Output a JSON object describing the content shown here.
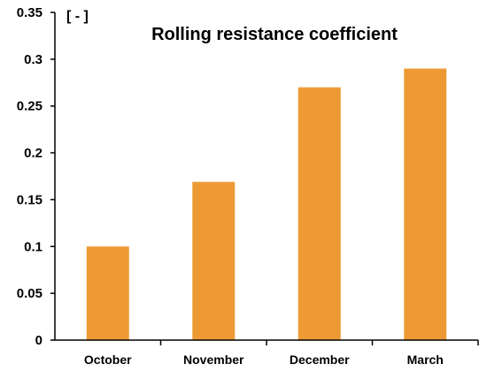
{
  "chart_data": {
    "type": "bar",
    "title": "Rolling resistance coefficient",
    "ylabel": "[ - ]",
    "xlabel": "",
    "categories": [
      "October",
      "November",
      "December",
      "March"
    ],
    "values": [
      0.1,
      0.169,
      0.27,
      0.29
    ],
    "ylim": [
      0,
      0.35
    ],
    "yticks": [
      "0",
      "0.05",
      "0.1",
      "0.15",
      "0.2",
      "0.25",
      "0.3",
      "0.35"
    ],
    "grid": false,
    "bar_color": "#ED9A35"
  }
}
